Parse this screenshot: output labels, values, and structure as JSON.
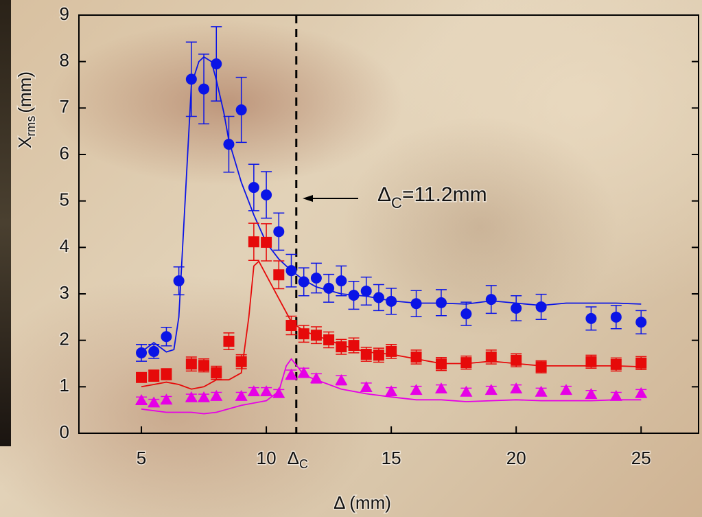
{
  "chart_data": {
    "type": "scatter",
    "xlabel": "Δ (mm)",
    "ylabel": {
      "main": "X",
      "sub": "rms",
      "unit": "(mm)"
    },
    "xlim": [
      2.5,
      27.3
    ],
    "ylim": [
      0,
      9
    ],
    "xticks": [
      5,
      10,
      15,
      20,
      25
    ],
    "yticks": [
      0,
      1,
      2,
      3,
      4,
      5,
      6,
      7,
      8,
      9
    ],
    "critical": {
      "value": 11.2,
      "symbol": "Δ",
      "subscript": "C"
    },
    "annotation": "=11.2mm",
    "series": [
      {
        "kind": "points",
        "marker": "circle",
        "color": "#0a14e6",
        "x": [
          5,
          5.5,
          6,
          6.5,
          7,
          7.5,
          8,
          8.5,
          9,
          9.5,
          10,
          10.5,
          11,
          11.5,
          12,
          12.5,
          13,
          13.5,
          14,
          14.5,
          15,
          16,
          17,
          18,
          19,
          20,
          21,
          23,
          24,
          25
        ],
        "values": [
          1.73,
          1.76,
          2.08,
          3.28,
          7.62,
          7.41,
          7.95,
          6.22,
          6.96,
          5.29,
          5.13,
          4.34,
          3.5,
          3.26,
          3.34,
          3.12,
          3.28,
          2.97,
          3.06,
          2.92,
          2.84,
          2.79,
          2.81,
          2.57,
          2.88,
          2.69,
          2.72,
          2.47,
          2.5,
          2.39
        ],
        "errors": [
          0.18,
          0.15,
          0.2,
          0.3,
          0.8,
          0.75,
          0.8,
          0.6,
          0.7,
          0.5,
          0.5,
          0.4,
          0.35,
          0.3,
          0.32,
          0.3,
          0.32,
          0.3,
          0.3,
          0.28,
          0.28,
          0.28,
          0.28,
          0.25,
          0.3,
          0.27,
          0.27,
          0.25,
          0.25,
          0.25
        ]
      },
      {
        "kind": "points",
        "marker": "square",
        "color": "#e60a0a",
        "x": [
          5,
          5.5,
          6,
          7,
          7.5,
          8,
          8.5,
          9,
          9.5,
          10,
          10.5,
          11,
          11.5,
          12,
          12.5,
          13,
          13.5,
          14,
          14.5,
          15,
          16,
          17,
          18,
          19,
          20,
          21,
          23,
          24,
          25
        ],
        "values": [
          1.2,
          1.24,
          1.27,
          1.49,
          1.46,
          1.3,
          1.98,
          1.54,
          4.12,
          4.11,
          3.41,
          2.32,
          2.14,
          2.11,
          2.01,
          1.86,
          1.89,
          1.7,
          1.68,
          1.76,
          1.64,
          1.49,
          1.52,
          1.64,
          1.57,
          1.43,
          1.54,
          1.48,
          1.51
        ],
        "errors": [
          0.1,
          0.12,
          0.12,
          0.15,
          0.14,
          0.14,
          0.18,
          0.15,
          0.4,
          0.4,
          0.3,
          0.2,
          0.18,
          0.18,
          0.17,
          0.16,
          0.16,
          0.15,
          0.15,
          0.15,
          0.15,
          0.14,
          0.14,
          0.15,
          0.14,
          0.13,
          0.14,
          0.14,
          0.14
        ]
      },
      {
        "kind": "points",
        "marker": "triangle",
        "color": "#e600e6",
        "x": [
          5,
          5.5,
          6,
          7,
          7.5,
          8,
          9,
          9.5,
          10,
          10.5,
          11,
          11.5,
          12,
          13,
          14,
          15,
          16,
          17,
          18,
          19,
          20,
          21,
          22,
          23,
          24,
          25
        ],
        "values": [
          0.71,
          0.66,
          0.72,
          0.77,
          0.77,
          0.8,
          0.8,
          0.9,
          0.9,
          0.86,
          1.26,
          1.3,
          1.18,
          1.14,
          0.99,
          0.9,
          0.93,
          0.96,
          0.89,
          0.93,
          0.96,
          0.89,
          0.93,
          0.84,
          0.8,
          0.86
        ],
        "errors": [
          0.07,
          0.07,
          0.07,
          0.07,
          0.07,
          0.08,
          0.08,
          0.08,
          0.08,
          0.08,
          0.1,
          0.1,
          0.1,
          0.1,
          0.09,
          0.08,
          0.08,
          0.08,
          0.08,
          0.08,
          0.08,
          0.08,
          0.08,
          0.08,
          0.08,
          0.08
        ]
      },
      {
        "kind": "line",
        "color": "#0a14e6",
        "x": [
          5,
          5.5,
          6,
          6.3,
          6.5,
          6.8,
          7,
          7.3,
          7.5,
          7.8,
          8,
          8.3,
          8.5,
          9,
          9.5,
          10,
          10.5,
          11,
          11.5,
          12,
          13,
          14,
          15,
          16,
          17,
          18,
          19,
          20,
          21,
          22,
          23,
          24,
          25
        ],
        "values": [
          1.75,
          1.95,
          1.75,
          1.8,
          2.5,
          5.5,
          7.5,
          8.0,
          8.1,
          8.0,
          7.6,
          6.9,
          6.3,
          5.4,
          4.7,
          4.1,
          3.75,
          3.5,
          3.3,
          3.15,
          3.0,
          2.95,
          2.85,
          2.8,
          2.8,
          2.78,
          2.85,
          2.8,
          2.75,
          2.8,
          2.8,
          2.8,
          2.78
        ]
      },
      {
        "kind": "line",
        "color": "#e60a0a",
        "x": [
          5,
          5.5,
          6,
          6.5,
          7,
          7.5,
          8,
          8.5,
          9,
          9.3,
          9.5,
          9.7,
          10,
          10.5,
          11,
          11.5,
          12,
          13,
          14,
          15,
          16,
          17,
          18,
          19,
          20,
          21,
          22,
          23,
          24,
          25
        ],
        "values": [
          1.0,
          1.05,
          1.1,
          1.05,
          0.95,
          1.0,
          1.15,
          1.15,
          1.3,
          2.5,
          3.6,
          3.7,
          3.4,
          2.9,
          2.4,
          2.2,
          2.1,
          1.9,
          1.75,
          1.7,
          1.6,
          1.5,
          1.5,
          1.55,
          1.5,
          1.45,
          1.45,
          1.45,
          1.45,
          1.43
        ]
      },
      {
        "kind": "line",
        "color": "#e600e6",
        "x": [
          5,
          6,
          7,
          7.5,
          8,
          9,
          10,
          10.5,
          10.8,
          11,
          11.3,
          11.5,
          12,
          13,
          14,
          15,
          16,
          17,
          18,
          19,
          20,
          21,
          22,
          23,
          24,
          25
        ],
        "values": [
          0.52,
          0.45,
          0.45,
          0.42,
          0.45,
          0.6,
          0.7,
          0.9,
          1.45,
          1.6,
          1.4,
          1.25,
          1.15,
          0.95,
          0.85,
          0.78,
          0.72,
          0.72,
          0.68,
          0.7,
          0.72,
          0.7,
          0.7,
          0.7,
          0.72,
          0.72
        ]
      }
    ]
  }
}
